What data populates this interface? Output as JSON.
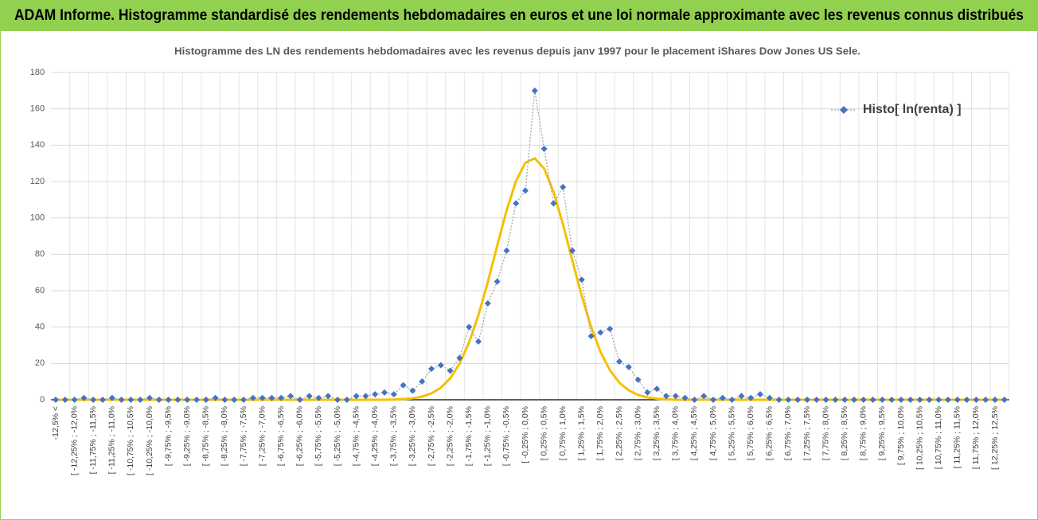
{
  "chart_data": {
    "type": "line",
    "title": "ADAM Informe. Histogramme standardisé des rendements hebdomadaires en euros et une loi normale approximante avec les revenus connus distribués",
    "subtitle": "Histogramme des LN des rendements hebdomadaires avec les revenus depuis janv 1997 pour le placement iShares Dow Jones US Sele.",
    "categories": [
      "-12,5% <",
      null,
      "[ -12,25% ; -12,0%",
      null,
      "[ -11,75% ; -11,5%",
      null,
      "[ -11,25% ; -11,0%",
      null,
      "[ -10,75% ; -10,5%",
      null,
      "[ -10,25% ; -10,0%",
      null,
      "[ -9,75% ; -9,5%",
      null,
      "[ -9,25% ; -9,0%",
      null,
      "[ -8,75% ; -8,5%",
      null,
      "[ -8,25% ; -8,0%",
      null,
      "[ -7,75% ; -7,5%",
      null,
      "[ -7,25% ; -7,0%",
      null,
      "[ -6,75% ; -6,5%",
      null,
      "[ -6,25% ; -6,0%",
      null,
      "[ -5,75% ; -5,5%",
      null,
      "[ -5,25% ; -5,0%",
      null,
      "[ -4,75% ; -4,5%",
      null,
      "[ -4,25% ; -4,0%",
      null,
      "[ -3,75% ; -3,5%",
      null,
      "[ -3,25% ; -3,0%",
      null,
      "[ -2,75% ; -2,5%",
      null,
      "[ -2,25% ; -2,0%",
      null,
      "[ -1,75% ; -1,5%",
      null,
      "[ -1,25% ; -1,0%",
      null,
      "[ -0,75% ; -0,5%",
      null,
      "[ -0,25% ; 0,0%",
      null,
      "[ 0,25% ; 0,5%",
      null,
      "[ 0,75% ; 1,0%",
      null,
      "[ 1,25% ; 1,5%",
      null,
      "[ 1,75% ; 2,0%",
      null,
      "[ 2,25% ; 2,5%",
      null,
      "[ 2,75% ; 3,0%",
      null,
      "[ 3,25% ; 3,5%",
      null,
      "[ 3,75% ; 4,0%",
      null,
      "[ 4,25% ; 4,5%",
      null,
      "[ 4,75% ; 5,0%",
      null,
      "[ 5,25% ; 5,5%",
      null,
      "[ 5,75% ; 6,0%",
      null,
      "[ 6,25% ; 6,5%",
      null,
      "[ 6,75% ; 7,0%",
      null,
      "[ 7,25% ; 7,5%",
      null,
      "[ 7,75% ; 8,0%",
      null,
      "[ 8,25% ; 8,5%",
      null,
      "[ 8,75% ; 9,0%",
      null,
      "[ 9,25% ; 9,5%",
      null,
      "[ 9,75% ; 10,0%",
      null,
      "[ 10,25% ; 10,5%",
      null,
      "[ 10,75% ; 11,0%",
      null,
      "[ 11,25% ; 11,5%",
      null,
      "[ 11,75% ; 12,0%",
      null,
      "[ 12,25% ; 12,5%",
      null
    ],
    "series": [
      {
        "name": "Histo[ ln(renta) ]",
        "color": "#4472c4",
        "line_color": "#a5a5a5",
        "values": [
          0,
          0,
          0,
          1,
          0,
          0,
          1,
          0,
          0,
          0,
          1,
          0,
          0,
          0,
          0,
          0,
          0,
          1,
          0,
          0,
          0,
          1,
          1,
          1,
          1,
          2,
          0,
          2,
          1,
          2,
          0,
          0,
          2,
          2,
          3,
          4,
          3,
          8,
          5,
          10,
          17,
          19,
          16,
          23,
          40,
          32,
          53,
          65,
          82,
          108,
          115,
          170,
          138,
          108,
          117,
          82,
          66,
          35,
          37,
          39,
          21,
          18,
          11,
          4,
          6,
          2,
          2,
          1,
          0,
          2,
          0,
          1,
          0,
          2,
          1,
          3,
          1,
          0,
          0,
          0,
          0,
          0,
          0,
          0,
          0,
          0,
          0,
          0,
          0,
          0,
          0,
          0,
          0,
          0,
          0,
          0,
          0,
          0,
          0,
          0,
          0,
          0
        ]
      },
      {
        "color": "#f5c000",
        "values": [
          0,
          0,
          0,
          0,
          0,
          0,
          0,
          0,
          0,
          0,
          0,
          0,
          0,
          0,
          0,
          0,
          0,
          0,
          0,
          0,
          0,
          0,
          0,
          0,
          0,
          0,
          0,
          0,
          0,
          0,
          0,
          0,
          0,
          0,
          0,
          0,
          0.1,
          0.4,
          0.8,
          1.7,
          3.5,
          6.6,
          11.8,
          19.9,
          31.4,
          46.5,
          64.7,
          84.7,
          104.1,
          120.2,
          130.4,
          132.8,
          127.1,
          114.4,
          96.6,
          76.6,
          57.1,
          40,
          26.3,
          16.3,
          9.4,
          5.2,
          2.6,
          1.3,
          0.6,
          0.2,
          0,
          0,
          0,
          0,
          0,
          0,
          0,
          0,
          0,
          0,
          0,
          0,
          0,
          0,
          0,
          0,
          0,
          0,
          0,
          0,
          0,
          0,
          0,
          0,
          0,
          0,
          0,
          0,
          0,
          0,
          0,
          0,
          0,
          0,
          0,
          0
        ]
      }
    ],
    "ylim": [
      0,
      180
    ],
    "yticks": [
      0,
      20,
      40,
      60,
      80,
      100,
      120,
      140,
      160,
      180
    ],
    "grid": true,
    "legend": "top-right"
  }
}
